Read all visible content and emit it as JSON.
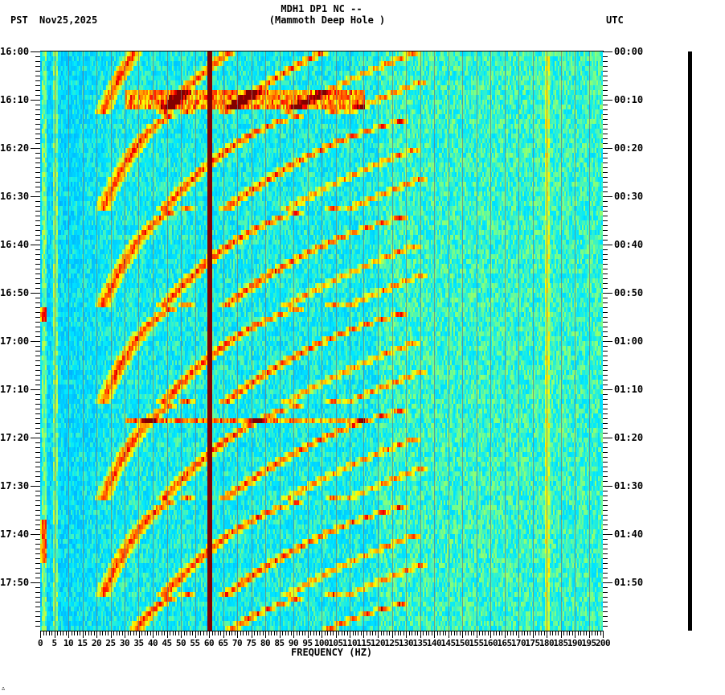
{
  "header": {
    "station_line": "MDH1 DP1 NC --",
    "location_line": "(Mammoth Deep Hole )",
    "left_timezone": "PST",
    "date": "Nov25,2025",
    "right_timezone": "UTC"
  },
  "footer": {
    "corner_mark": "∴"
  },
  "chart_data": {
    "type": "heatmap",
    "title": "MDH1 DP1 NC -- (Mammoth Deep Hole )",
    "subtitle": "Nov25,2025",
    "xlabel": "FREQUENCY (HZ)",
    "ylabel_left": "PST",
    "ylabel_right": "UTC",
    "xlim": [
      0,
      200
    ],
    "x_ticks": [
      0,
      5,
      10,
      15,
      20,
      25,
      30,
      35,
      40,
      45,
      50,
      55,
      60,
      65,
      70,
      75,
      80,
      85,
      90,
      95,
      100,
      105,
      110,
      115,
      120,
      125,
      130,
      135,
      140,
      145,
      150,
      155,
      160,
      165,
      170,
      175,
      180,
      185,
      190,
      195,
      200
    ],
    "x_tick_labels": [
      "0",
      "5",
      "10",
      "15",
      "20",
      "25",
      "30",
      "35",
      "40",
      "45",
      "50",
      "55",
      "60",
      "65",
      "70",
      "75",
      "80",
      "85",
      "90",
      "95",
      "100",
      "105",
      "110",
      "115",
      "120",
      "125",
      "130",
      "135",
      "140",
      "145",
      "150",
      "155",
      "160",
      "165",
      "170",
      "175",
      "180",
      "185",
      "190",
      "195",
      "200"
    ],
    "y_range_minutes": [
      0,
      120
    ],
    "y_ticks_left": [
      "16:00",
      "16:10",
      "16:20",
      "16:30",
      "16:40",
      "16:50",
      "17:00",
      "17:10",
      "17:20",
      "17:30",
      "17:40",
      "17:50"
    ],
    "y_ticks_right": [
      "00:00",
      "00:10",
      "00:20",
      "00:30",
      "00:40",
      "00:50",
      "01:00",
      "01:10",
      "01:20",
      "01:30",
      "01:40",
      "01:50"
    ],
    "minor_tick_interval_minutes": 1,
    "grid": false,
    "colormap": [
      "#0000c8",
      "#0060ff",
      "#00b0ff",
      "#00e8ff",
      "#80ff80",
      "#ffff00",
      "#ff8000",
      "#ff0000",
      "#800000"
    ],
    "features": {
      "persistent_lines_hz": [
        {
          "freq": 60,
          "intensity": "very high",
          "color": "#800000"
        },
        {
          "freq": 1,
          "intensity": "moderate"
        },
        {
          "freq": 5,
          "intensity": "moderate"
        },
        {
          "freq": 180,
          "intensity": "low"
        }
      ],
      "sweep_cycle_period_minutes": 20,
      "sweep_cycle_starts_minutes": [
        -8,
        12,
        32,
        52,
        72,
        92,
        112
      ],
      "sweep_description": "Repeating descending-frequency chirp harmonics (approx 20-130 Hz) restarting every ~20 min",
      "broadband_events_minutes": [
        8.5,
        10.5,
        76
      ]
    }
  }
}
